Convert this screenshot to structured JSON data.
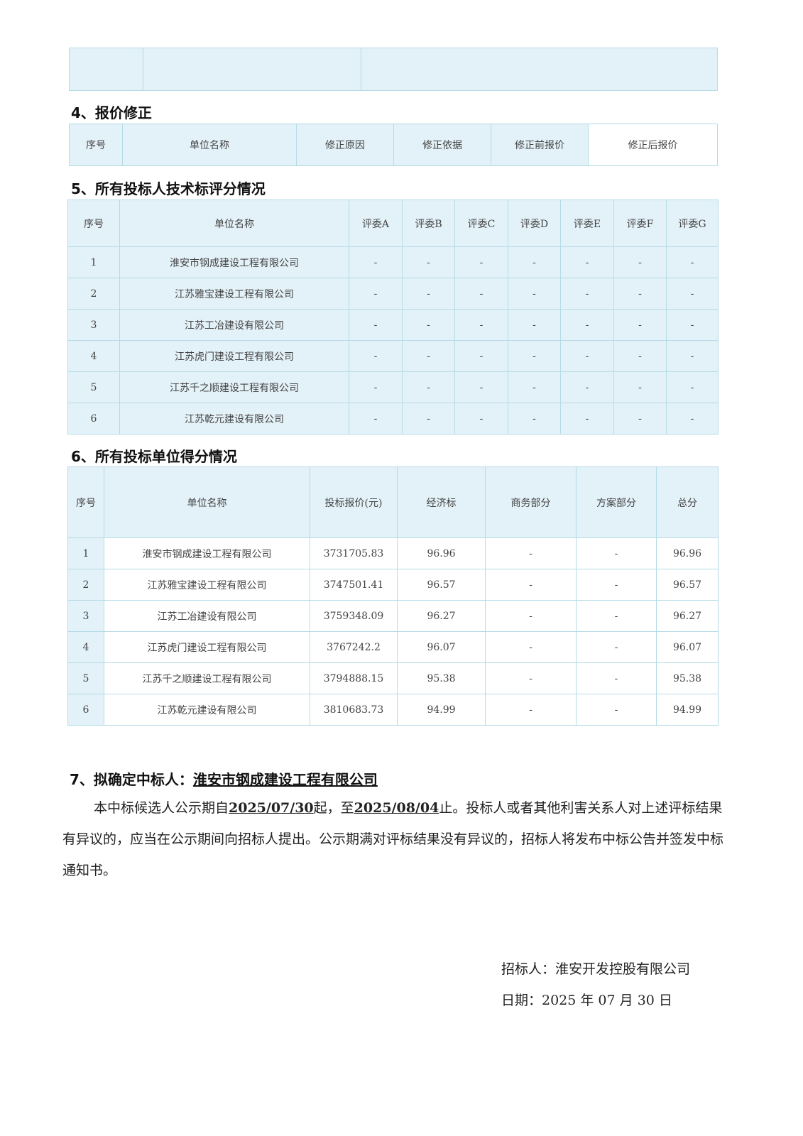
{
  "section4": {
    "title": "4、报价修正",
    "headers": [
      "序号",
      "单位名称",
      "修正原因",
      "修正依据",
      "修正前报价",
      "修正后报价"
    ]
  },
  "section5": {
    "title": "5、所有投标人技术标评分情况",
    "headers": [
      "序号",
      "单位名称",
      "评委A",
      "评委B",
      "评委C",
      "评委D",
      "评委E",
      "评委F",
      "评委G"
    ],
    "rows": [
      [
        "1",
        "淮安市钢成建设工程有限公司",
        "-",
        "-",
        "-",
        "-",
        "-",
        "-",
        "-"
      ],
      [
        "2",
        "江苏雅宝建设工程有限公司",
        "-",
        "-",
        "-",
        "-",
        "-",
        "-",
        "-"
      ],
      [
        "3",
        "江苏工冶建设有限公司",
        "-",
        "-",
        "-",
        "-",
        "-",
        "-",
        "-"
      ],
      [
        "4",
        "江苏虎门建设工程有限公司",
        "-",
        "-",
        "-",
        "-",
        "-",
        "-",
        "-"
      ],
      [
        "5",
        "江苏千之顺建设工程有限公司",
        "-",
        "-",
        "-",
        "-",
        "-",
        "-",
        "-"
      ],
      [
        "6",
        "江苏乾元建设有限公司",
        "-",
        "-",
        "-",
        "-",
        "-",
        "-",
        "-"
      ]
    ]
  },
  "section6": {
    "title": "6、所有投标单位得分情况",
    "headers": [
      "序号",
      "单位名称",
      "投标报价(元)",
      "经济标",
      "商务部分",
      "方案部分",
      "总分"
    ],
    "rows": [
      [
        "1",
        "淮安市钢成建设工程有限公司",
        "3731705.83",
        "96.96",
        "-",
        "-",
        "96.96"
      ],
      [
        "2",
        "江苏雅宝建设工程有限公司",
        "3747501.41",
        "96.57",
        "-",
        "-",
        "96.57"
      ],
      [
        "3",
        "江苏工冶建设有限公司",
        "3759348.09",
        "96.27",
        "-",
        "-",
        "96.27"
      ],
      [
        "4",
        "江苏虎门建设工程有限公司",
        "3767242.2",
        "96.07",
        "-",
        "-",
        "96.07"
      ],
      [
        "5",
        "江苏千之顺建设工程有限公司",
        "3794888.15",
        "95.38",
        "-",
        "-",
        "95.38"
      ],
      [
        "6",
        "江苏乾元建设有限公司",
        "3810683.73",
        "94.99",
        "-",
        "-",
        "94.99"
      ]
    ]
  },
  "section7": {
    "title": "7、拟确定中标人：",
    "winner": "淮安市钢成建设工程有限公司",
    "p1": "本中标候选人公示期自",
    "start": "2025/07/30",
    "p2": "起，至",
    "end": "2025/08/04",
    "p3": "止。投标人或者其他利害关系人对上述评标结果有异议的，应当在公示期间向招标人提出。公示期满对评标结果没有异议的，招标人将发布中标公告并签发中标通知书。"
  },
  "signature": {
    "tenderer": "招标人：淮安开发控股有限公司",
    "date": "日期：2025 年 07 月 30 日"
  }
}
